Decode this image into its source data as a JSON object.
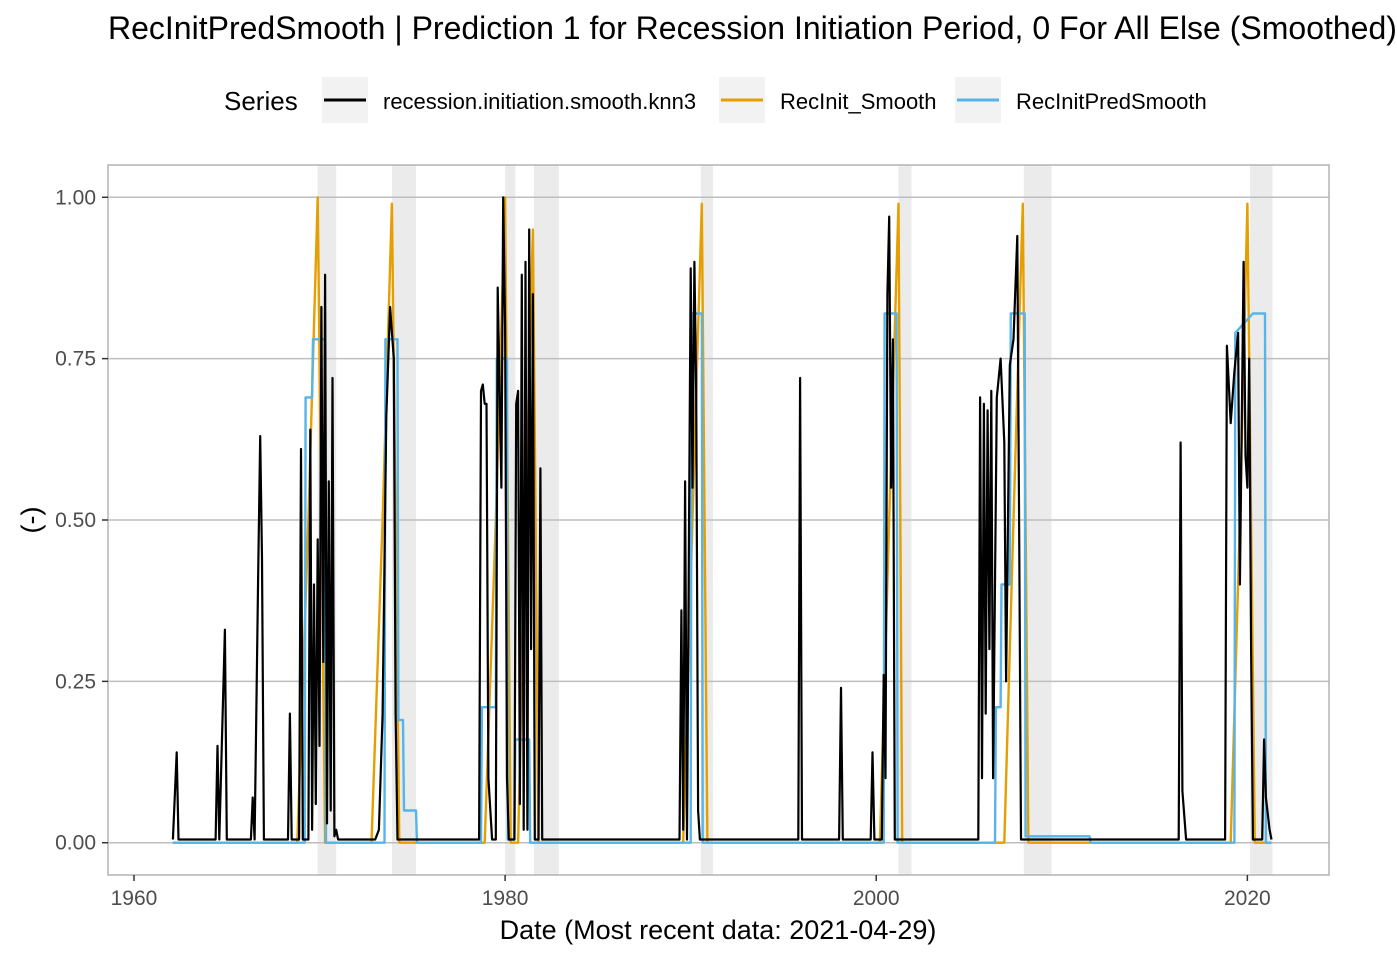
{
  "chart_data": {
    "type": "line",
    "title": "RecInitPredSmooth | Prediction 1 for Recession Initiation Period, 0 For All Else (Smoothed)",
    "xlabel": "Date (Most recent data: 2021-04-29)",
    "ylabel": "(-)",
    "xlim": [
      1958.6,
      2024.4
    ],
    "ylim": [
      -0.05,
      1.05
    ],
    "x_ticks": [
      1960,
      1980,
      2000,
      2020
    ],
    "x_tick_labels": [
      "1960",
      "1980",
      "2000",
      "2020"
    ],
    "y_ticks": [
      0,
      0.25,
      0.5,
      0.75,
      1.0
    ],
    "y_tick_labels": [
      "0.00",
      "0.25",
      "0.50",
      "0.75",
      "1.00"
    ],
    "grid": true,
    "legend": {
      "title": "Series",
      "position": "top"
    },
    "recession_shading": [
      [
        1969.9,
        1970.9
      ],
      [
        1973.9,
        1975.2
      ],
      [
        1980.0,
        1980.55
      ],
      [
        1981.55,
        1982.9
      ],
      [
        1990.55,
        1991.2
      ],
      [
        2001.2,
        2001.9
      ],
      [
        2007.95,
        2009.45
      ],
      [
        2020.15,
        2021.35
      ]
    ],
    "series": [
      {
        "name": "recession.initiation.smooth.knn3",
        "color": "#000000",
        "points": [
          [
            1962.1,
            0.005
          ],
          [
            1962.3,
            0.14
          ],
          [
            1962.4,
            0.005
          ],
          [
            1964.4,
            0.005
          ],
          [
            1964.5,
            0.15
          ],
          [
            1964.6,
            0.005
          ],
          [
            1964.9,
            0.33
          ],
          [
            1965.0,
            0.005
          ],
          [
            1966.3,
            0.005
          ],
          [
            1966.4,
            0.07
          ],
          [
            1966.5,
            0.005
          ],
          [
            1966.7,
            0.43
          ],
          [
            1966.8,
            0.63
          ],
          [
            1966.9,
            0.44
          ],
          [
            1967.0,
            0.005
          ],
          [
            1968.3,
            0.005
          ],
          [
            1968.4,
            0.2
          ],
          [
            1968.5,
            0.005
          ],
          [
            1968.9,
            0.005
          ],
          [
            1969.0,
            0.61
          ],
          [
            1969.1,
            0.005
          ],
          [
            1969.4,
            0.005
          ],
          [
            1969.5,
            0.64
          ],
          [
            1969.6,
            0.02
          ],
          [
            1969.7,
            0.4
          ],
          [
            1969.8,
            0.06
          ],
          [
            1969.9,
            0.47
          ],
          [
            1970.0,
            0.15
          ],
          [
            1970.1,
            0.83
          ],
          [
            1970.2,
            0.28
          ],
          [
            1970.3,
            0.88
          ],
          [
            1970.4,
            0.03
          ],
          [
            1970.5,
            0.56
          ],
          [
            1970.6,
            0.05
          ],
          [
            1970.7,
            0.72
          ],
          [
            1970.8,
            0.01
          ],
          [
            1970.9,
            0.02
          ],
          [
            1971.0,
            0.005
          ],
          [
            1973.0,
            0.005
          ],
          [
            1973.2,
            0.02
          ],
          [
            1973.4,
            0.2
          ],
          [
            1973.6,
            0.66
          ],
          [
            1973.8,
            0.83
          ],
          [
            1974.0,
            0.75
          ],
          [
            1974.1,
            0.2
          ],
          [
            1974.2,
            0.005
          ],
          [
            1978.6,
            0.005
          ],
          [
            1978.7,
            0.7
          ],
          [
            1978.8,
            0.71
          ],
          [
            1978.9,
            0.68
          ],
          [
            1979.0,
            0.68
          ],
          [
            1979.1,
            0.1
          ],
          [
            1979.3,
            0.005
          ],
          [
            1979.5,
            0.005
          ],
          [
            1979.6,
            0.86
          ],
          [
            1979.8,
            0.55
          ],
          [
            1979.9,
            1.0
          ],
          [
            1980.0,
            0.8
          ],
          [
            1980.1,
            0.1
          ],
          [
            1980.2,
            0.005
          ],
          [
            1980.5,
            0.005
          ],
          [
            1980.6,
            0.68
          ],
          [
            1980.7,
            0.7
          ],
          [
            1980.8,
            0.06
          ],
          [
            1980.9,
            0.88
          ],
          [
            1981.0,
            0.02
          ],
          [
            1981.1,
            0.9
          ],
          [
            1981.2,
            0.02
          ],
          [
            1981.3,
            0.95
          ],
          [
            1981.4,
            0.3
          ],
          [
            1981.5,
            0.85
          ],
          [
            1981.6,
            0.005
          ],
          [
            1981.8,
            0.005
          ],
          [
            1981.9,
            0.58
          ],
          [
            1982.0,
            0.005
          ],
          [
            1989.4,
            0.005
          ],
          [
            1989.5,
            0.36
          ],
          [
            1989.6,
            0.02
          ],
          [
            1989.7,
            0.56
          ],
          [
            1989.8,
            0.005
          ],
          [
            1990.0,
            0.89
          ],
          [
            1990.1,
            0.55
          ],
          [
            1990.2,
            0.9
          ],
          [
            1990.3,
            0.7
          ],
          [
            1990.4,
            0.05
          ],
          [
            1990.5,
            0.005
          ],
          [
            1995.8,
            0.005
          ],
          [
            1995.9,
            0.72
          ],
          [
            1996.0,
            0.005
          ],
          [
            1998.0,
            0.005
          ],
          [
            1998.1,
            0.24
          ],
          [
            1998.2,
            0.005
          ],
          [
            1999.7,
            0.005
          ],
          [
            1999.8,
            0.14
          ],
          [
            1999.9,
            0.005
          ],
          [
            2000.3,
            0.005
          ],
          [
            2000.4,
            0.26
          ],
          [
            2000.5,
            0.1
          ],
          [
            2000.6,
            0.85
          ],
          [
            2000.7,
            0.97
          ],
          [
            2000.8,
            0.55
          ],
          [
            2000.9,
            0.78
          ],
          [
            2001.0,
            0.005
          ],
          [
            2005.5,
            0.005
          ],
          [
            2005.6,
            0.69
          ],
          [
            2005.7,
            0.1
          ],
          [
            2005.8,
            0.68
          ],
          [
            2005.9,
            0.2
          ],
          [
            2006.0,
            0.67
          ],
          [
            2006.1,
            0.3
          ],
          [
            2006.2,
            0.7
          ],
          [
            2006.3,
            0.1
          ],
          [
            2006.5,
            0.69
          ],
          [
            2006.7,
            0.75
          ],
          [
            2006.9,
            0.62
          ],
          [
            2007.0,
            0.25
          ],
          [
            2007.2,
            0.74
          ],
          [
            2007.4,
            0.78
          ],
          [
            2007.6,
            0.94
          ],
          [
            2007.7,
            0.5
          ],
          [
            2007.8,
            0.005
          ],
          [
            2016.3,
            0.005
          ],
          [
            2016.4,
            0.62
          ],
          [
            2016.5,
            0.08
          ],
          [
            2016.7,
            0.005
          ],
          [
            2018.8,
            0.005
          ],
          [
            2018.9,
            0.77
          ],
          [
            2019.1,
            0.65
          ],
          [
            2019.3,
            0.73
          ],
          [
            2019.5,
            0.79
          ],
          [
            2019.6,
            0.4
          ],
          [
            2019.8,
            0.9
          ],
          [
            2019.9,
            0.6
          ],
          [
            2020.0,
            0.55
          ],
          [
            2020.1,
            0.75
          ],
          [
            2020.2,
            0.3
          ],
          [
            2020.3,
            0.005
          ],
          [
            2020.8,
            0.005
          ],
          [
            2020.9,
            0.16
          ],
          [
            2021.0,
            0.07
          ],
          [
            2021.2,
            0.02
          ],
          [
            2021.3,
            0.005
          ]
        ]
      },
      {
        "name": "RecInit_Smooth",
        "color": "#E69F00",
        "points": [
          [
            1962.1,
            0.0
          ],
          [
            1968.8,
            0.0
          ],
          [
            1969.4,
            0.5
          ],
          [
            1969.9,
            1.0
          ],
          [
            1970.3,
            0.0
          ],
          [
            1972.8,
            0.0
          ],
          [
            1973.4,
            0.5
          ],
          [
            1973.9,
            0.99
          ],
          [
            1974.3,
            0.0
          ],
          [
            1978.9,
            0.0
          ],
          [
            1979.5,
            0.5
          ],
          [
            1980.0,
            1.0
          ],
          [
            1980.3,
            0.0
          ],
          [
            1980.7,
            0.0
          ],
          [
            1981.1,
            0.5
          ],
          [
            1981.5,
            0.95
          ],
          [
            1981.8,
            0.0
          ],
          [
            1989.6,
            0.0
          ],
          [
            1990.1,
            0.5
          ],
          [
            1990.6,
            0.99
          ],
          [
            1990.9,
            0.0
          ],
          [
            2000.2,
            0.0
          ],
          [
            2000.7,
            0.5
          ],
          [
            2001.2,
            0.99
          ],
          [
            2001.4,
            0.0
          ],
          [
            2006.9,
            0.0
          ],
          [
            2007.4,
            0.5
          ],
          [
            2007.9,
            0.99
          ],
          [
            2008.2,
            0.0
          ],
          [
            2019.1,
            0.0
          ],
          [
            2019.6,
            0.5
          ],
          [
            2020.0,
            0.99
          ],
          [
            2020.4,
            0.0
          ],
          [
            2021.3,
            0.0
          ]
        ]
      },
      {
        "name": "RecInitPredSmooth",
        "color": "#56B4E9",
        "points": [
          [
            1962.1,
            0.0
          ],
          [
            1969.2,
            0.0
          ],
          [
            1969.25,
            0.69
          ],
          [
            1969.6,
            0.69
          ],
          [
            1969.65,
            0.78
          ],
          [
            1970.3,
            0.78
          ],
          [
            1970.35,
            0.0
          ],
          [
            1973.5,
            0.0
          ],
          [
            1973.55,
            0.78
          ],
          [
            1974.2,
            0.78
          ],
          [
            1974.25,
            0.19
          ],
          [
            1974.5,
            0.19
          ],
          [
            1974.55,
            0.05
          ],
          [
            1975.2,
            0.05
          ],
          [
            1975.25,
            0.0
          ],
          [
            1978.7,
            0.0
          ],
          [
            1978.75,
            0.21
          ],
          [
            1979.5,
            0.21
          ],
          [
            1979.55,
            0.75
          ],
          [
            1980.1,
            0.75
          ],
          [
            1980.15,
            0.005
          ],
          [
            1980.5,
            0.005
          ],
          [
            1980.55,
            0.16
          ],
          [
            1981.3,
            0.16
          ],
          [
            1981.35,
            0.0
          ],
          [
            1990.0,
            0.0
          ],
          [
            1990.05,
            0.82
          ],
          [
            1990.6,
            0.82
          ],
          [
            1990.65,
            0.0
          ],
          [
            2000.4,
            0.0
          ],
          [
            2000.45,
            0.82
          ],
          [
            2001.1,
            0.82
          ],
          [
            2001.15,
            0.0
          ],
          [
            2006.4,
            0.0
          ],
          [
            2006.45,
            0.21
          ],
          [
            2006.7,
            0.21
          ],
          [
            2006.75,
            0.4
          ],
          [
            2007.2,
            0.4
          ],
          [
            2007.25,
            0.82
          ],
          [
            2008.0,
            0.82
          ],
          [
            2008.05,
            0.01
          ],
          [
            2011.5,
            0.01
          ],
          [
            2011.55,
            0.0
          ],
          [
            2019.3,
            0.0
          ],
          [
            2019.35,
            0.79
          ],
          [
            2020.3,
            0.82
          ],
          [
            2020.95,
            0.82
          ],
          [
            2021.0,
            0.0
          ],
          [
            2021.3,
            0.0
          ]
        ]
      }
    ]
  }
}
